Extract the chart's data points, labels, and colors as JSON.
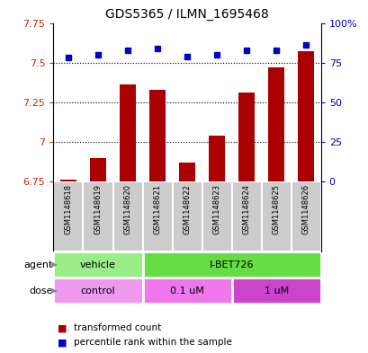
{
  "title": "GDS5365 / ILMN_1695468",
  "samples": [
    "GSM1148618",
    "GSM1148619",
    "GSM1148620",
    "GSM1148621",
    "GSM1148622",
    "GSM1148623",
    "GSM1148624",
    "GSM1148625",
    "GSM1148626"
  ],
  "red_values": [
    6.76,
    6.9,
    7.36,
    7.33,
    6.87,
    7.04,
    7.31,
    7.47,
    7.57
  ],
  "blue_values": [
    78,
    80,
    83,
    84,
    79,
    80,
    83,
    83,
    86
  ],
  "ylim_left": [
    6.75,
    7.75
  ],
  "ylim_right": [
    0,
    100
  ],
  "yticks_left": [
    6.75,
    7.0,
    7.25,
    7.5,
    7.75
  ],
  "ytick_labels_left": [
    "6.75",
    "7",
    "7.25",
    "7.5",
    "7.75"
  ],
  "yticks_right": [
    0,
    25,
    50,
    75,
    100
  ],
  "ytick_labels_right": [
    "0",
    "25",
    "50",
    "75",
    "100%"
  ],
  "hlines": [
    7.0,
    7.25,
    7.5
  ],
  "bar_color": "#AA0000",
  "dot_color": "#0000CC",
  "bar_base": 6.75,
  "agent_groups": [
    {
      "label": "vehicle",
      "start": 0,
      "end": 3,
      "color": "#99EE88"
    },
    {
      "label": "I-BET726",
      "start": 3,
      "end": 9,
      "color": "#66DD44"
    }
  ],
  "dose_groups": [
    {
      "label": "control",
      "start": 0,
      "end": 3,
      "color": "#EE99EE"
    },
    {
      "label": "0.1 uM",
      "start": 3,
      "end": 6,
      "color": "#EE77EE"
    },
    {
      "label": "1 uM",
      "start": 6,
      "end": 9,
      "color": "#CC44CC"
    }
  ],
  "legend_red": "transformed count",
  "legend_blue": "percentile rank within the sample",
  "sample_box_color": "#CCCCCC",
  "left_label_color": "#CC2200",
  "right_label_color": "#0000BB",
  "arrow_color": "#888888"
}
